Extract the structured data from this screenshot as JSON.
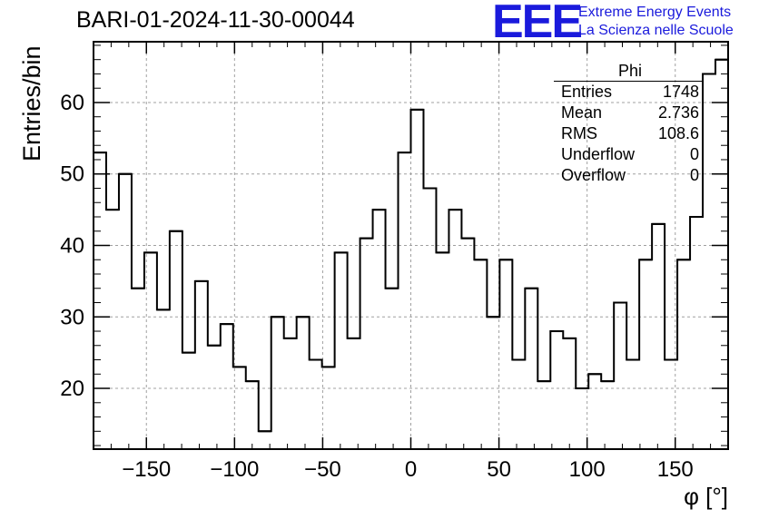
{
  "header": {
    "title": "BARI-01-2024-11-30-00044"
  },
  "logo": {
    "mark": "EEE",
    "line1": "Extreme Energy Events",
    "line2": "La Scienza nelle Scuole"
  },
  "stats": {
    "title": "Phi",
    "rows": [
      {
        "label": "Entries",
        "value": "1748"
      },
      {
        "label": "Mean",
        "value": "2.736"
      },
      {
        "label": "RMS",
        "value": "108.6"
      },
      {
        "label": "Underflow",
        "value": "0"
      },
      {
        "label": "Overflow",
        "value": "0"
      }
    ]
  },
  "chart_data": {
    "type": "bar",
    "subtype": "histogram-step",
    "title": "BARI-01-2024-11-30-00044",
    "xlabel": "φ [°]",
    "ylabel": "Entries/bin",
    "xlim": [
      -180,
      180
    ],
    "ylim": [
      11.5,
      68.5
    ],
    "bin_width": 7.2,
    "values": [
      53,
      45,
      50,
      34,
      39,
      31,
      42,
      25,
      35,
      26,
      29,
      23,
      21,
      14,
      30,
      27,
      30,
      24,
      23,
      39,
      27,
      41,
      45,
      34,
      53,
      59,
      48,
      39,
      45,
      41,
      38,
      30,
      38,
      24,
      34,
      21,
      28,
      27,
      20,
      22,
      21,
      32,
      24,
      38,
      43,
      24,
      38,
      44,
      64,
      66
    ],
    "xticks": [
      -150,
      -100,
      -50,
      0,
      50,
      100,
      150
    ],
    "xtick_labels": [
      "−150",
      "−100",
      "−50",
      "0",
      "50",
      "100",
      "150"
    ],
    "yticks": [
      20,
      30,
      40,
      50,
      60
    ],
    "ytick_labels": [
      "20",
      "30",
      "40",
      "50",
      "60"
    ],
    "grid": true,
    "line_color": "#000000",
    "grid_color": "#a0a0a0"
  }
}
